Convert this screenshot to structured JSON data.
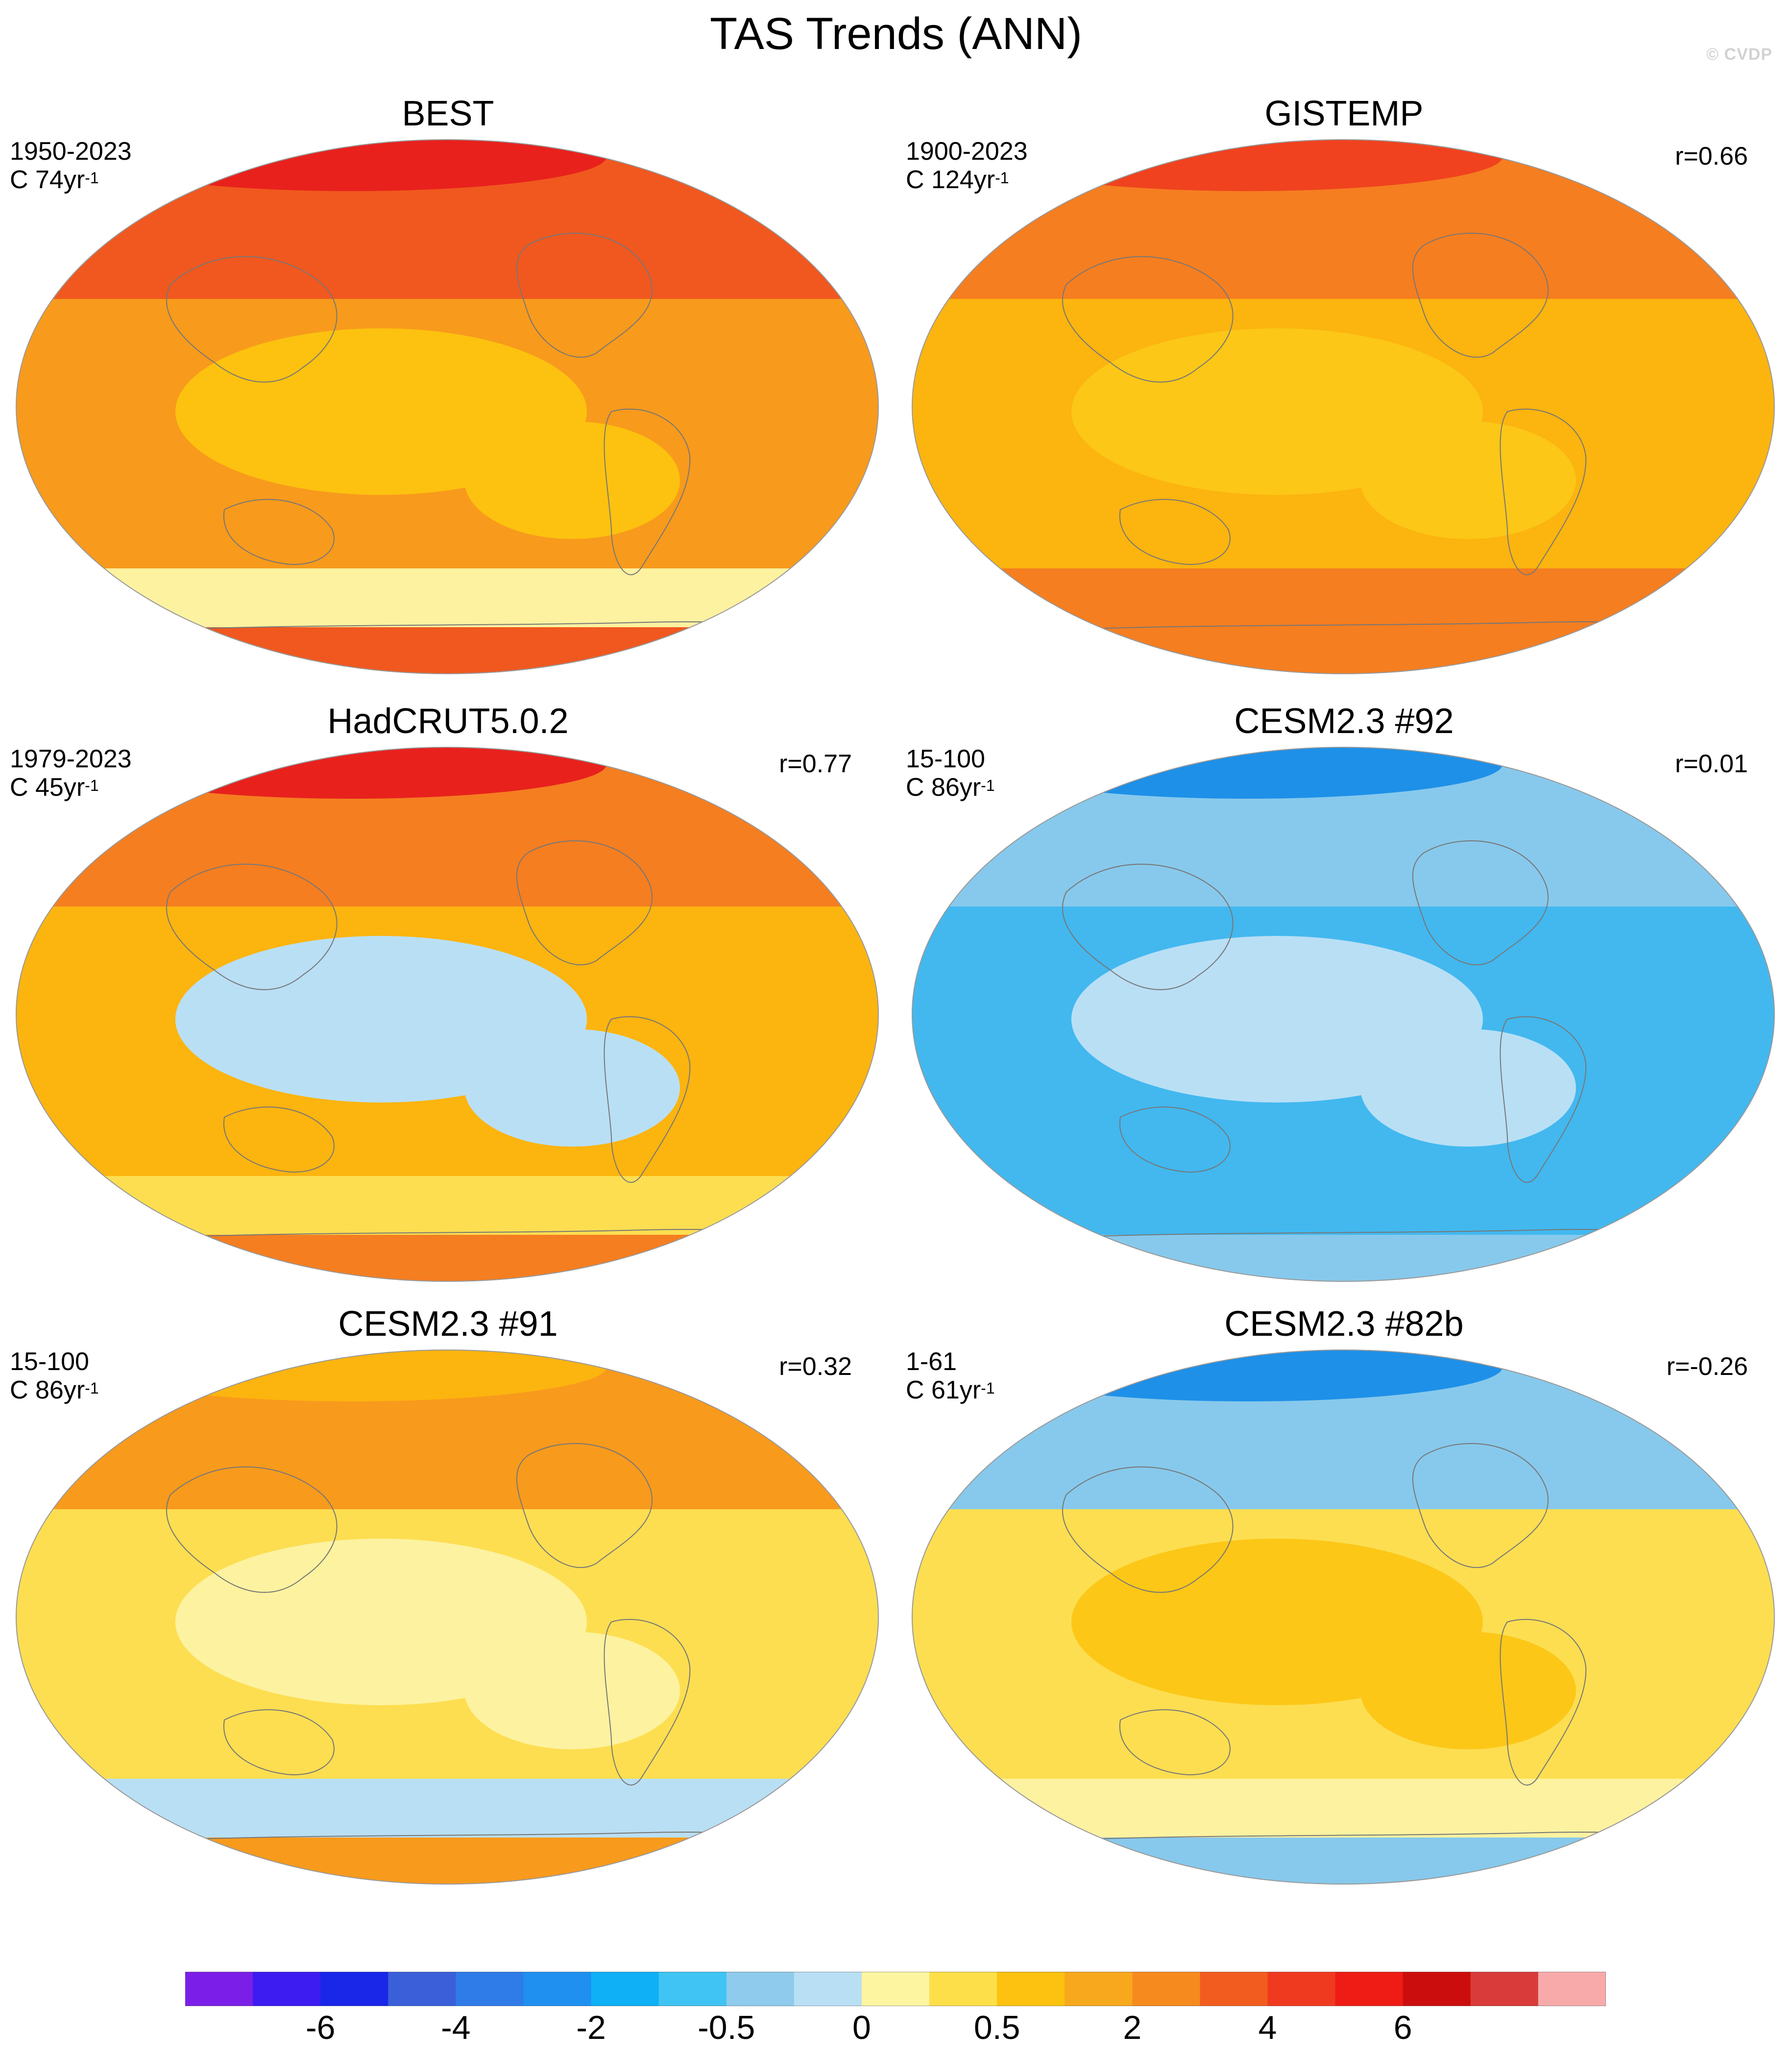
{
  "title": "TAS Trends (ANN)",
  "watermark": "© CVDP",
  "panels": [
    {
      "name": "BEST",
      "period": "1950-2023",
      "trend_prefix": "C 74yr",
      "trend_exp": "-1",
      "correlation": "",
      "colors": {
        "base": "#f89a1c",
        "north": "#f0581f",
        "arctic": "#e8211d",
        "south_band": "#fdf2a0",
        "mid": "#fcc20f"
      }
    },
    {
      "name": "GISTEMP",
      "period": "1900-2023",
      "trend_prefix": "C 124yr",
      "trend_exp": "-1",
      "correlation": "r=0.66",
      "colors": {
        "base": "#fcb40f",
        "north": "#f57e20",
        "arctic": "#f0421f",
        "south_band": "#f57e20",
        "mid": "#fcc717"
      }
    },
    {
      "name": "HadCRUT5.0.2",
      "period": "1979-2023",
      "trend_prefix": "C 45yr",
      "trend_exp": "-1",
      "correlation": "r=0.77",
      "colors": {
        "base": "#fcb40f",
        "north": "#f57e20",
        "arctic": "#e8211d",
        "south_band": "#fdde51",
        "mid": "#b9dff5"
      }
    },
    {
      "name": "CESM2.3 #92",
      "period": "15-100",
      "trend_prefix": "C 86yr",
      "trend_exp": "-1",
      "correlation": "r=0.01",
      "colors": {
        "base": "#42b8ef",
        "north": "#87c9ec",
        "arctic": "#1e90e8",
        "south_band": "#42b8ef",
        "mid": "#b9dff5"
      }
    },
    {
      "name": "CESM2.3 #91",
      "period": "15-100",
      "trend_prefix": "C 86yr",
      "trend_exp": "-1",
      "correlation": "r=0.32",
      "colors": {
        "base": "#fdde51",
        "north": "#f89a1c",
        "arctic": "#fcb40f",
        "south_band": "#b9dff5",
        "mid": "#fdf2a0"
      }
    },
    {
      "name": "CESM2.3 #82b",
      "period": "1-61",
      "trend_prefix": "C 61yr",
      "trend_exp": "-1",
      "correlation": "r=-0.26",
      "colors": {
        "base": "#fdde51",
        "north": "#87c9ec",
        "arctic": "#1e90e8",
        "south_band": "#fdf2a0",
        "mid": "#fcc717"
      }
    }
  ],
  "colorbar": {
    "colors": [
      "#7b1fe8",
      "#3c1cf0",
      "#1a26e8",
      "#3a5fd9",
      "#2f7be8",
      "#1f8ff0",
      "#0fb0f5",
      "#3fc4f3",
      "#8fcbec",
      "#b9dff5",
      "#fdf5a0",
      "#fde049",
      "#fcc20f",
      "#f8a81c",
      "#f78a1f",
      "#f25d1f",
      "#f03a1f",
      "#ee1c14",
      "#cc0d0d",
      "#d93b3b",
      "#f8aaaa"
    ],
    "labels": [
      "-6",
      "-4",
      "-2",
      "-0.5",
      "0",
      "0.5",
      "2",
      "4",
      "6"
    ],
    "label_boundaries": [
      2,
      4,
      6,
      8,
      10,
      12,
      14,
      16,
      18
    ]
  }
}
